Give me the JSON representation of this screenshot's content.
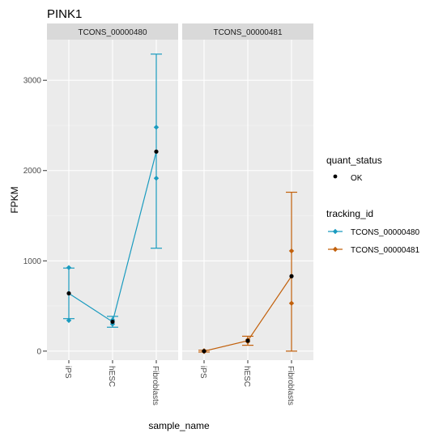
{
  "chart_data": {
    "type": "line",
    "title": "PINK1",
    "xlabel": "sample_name",
    "ylabel": "FPKM",
    "categories": [
      "iPS",
      "hESC",
      "Fibroblasts"
    ],
    "ylim": [
      -100,
      3450
    ],
    "yticks": [
      0,
      1000,
      2000,
      3000
    ],
    "grid": true,
    "legend_placement": "right",
    "panels": [
      {
        "label": "TCONS_00000480",
        "color": "#1a9bbf",
        "values": [
          640,
          325,
          2210
        ],
        "error_low": [
          360,
          265,
          1140
        ],
        "error_high": [
          920,
          385,
          3290
        ],
        "replicates": [
          [
            340,
            925
          ],
          [
            300,
            345
          ],
          [
            1915,
            2480
          ]
        ]
      },
      {
        "label": "TCONS_00000481",
        "color": "#c2600b",
        "values": [
          0,
          115,
          830
        ],
        "error_low": [
          -10,
          65,
          0
        ],
        "error_high": [
          10,
          165,
          1760
        ],
        "replicates": [
          [
            -5,
            5
          ],
          [
            105,
            125
          ],
          [
            530,
            1110
          ]
        ]
      }
    ],
    "legend": {
      "quant_status": {
        "title": "quant_status",
        "items": [
          "OK"
        ]
      },
      "tracking_id": {
        "title": "tracking_id",
        "items": [
          "TCONS_00000480",
          "TCONS_00000481"
        ]
      }
    }
  }
}
